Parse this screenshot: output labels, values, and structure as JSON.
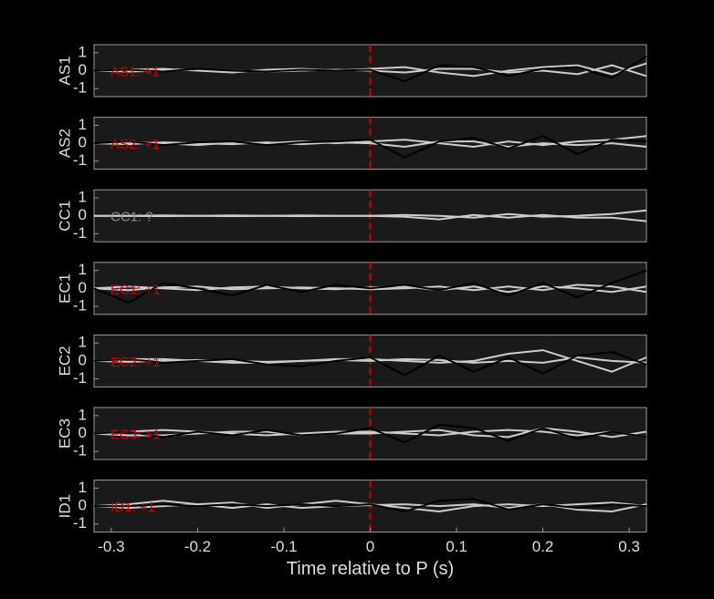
{
  "chart_data": [
    {
      "type": "line",
      "ylabel": "AS1",
      "annotation": {
        "text": "AS1: +1",
        "color": "#cc0000"
      },
      "vline": 0,
      "vline_color": "#cc0000",
      "xlim": [
        -0.32,
        0.32
      ],
      "ylim": [
        -1.45,
        1.45
      ],
      "yticks": [
        -1,
        0,
        1
      ],
      "x": [
        -0.32,
        -0.28,
        -0.24,
        -0.2,
        -0.16,
        -0.12,
        -0.08,
        -0.04,
        0,
        0.04,
        0.08,
        0.12,
        0.16,
        0.2,
        0.24,
        0.28,
        0.32
      ],
      "series": [
        {
          "color": "#cccccc",
          "values": [
            0,
            0.05,
            0.1,
            0,
            -0.1,
            0.05,
            0.1,
            0,
            0.1,
            0.2,
            -0.1,
            -0.3,
            0,
            0.2,
            0.3,
            -0.2,
            0.4
          ]
        },
        {
          "color": "#cccccc",
          "values": [
            0,
            -0.05,
            0,
            0.05,
            0,
            -0.05,
            0,
            0.05,
            0,
            -0.1,
            0.1,
            0.1,
            -0.1,
            0,
            -0.2,
            0.3,
            -0.3
          ]
        },
        {
          "color": "#000000",
          "values": [
            0,
            0.05,
            -0.05,
            0.1,
            0,
            -0.05,
            0.05,
            0,
            0.05,
            -0.6,
            0.3,
            0.2,
            -0.3,
            0.1,
            0.2,
            -0.4,
            0.8
          ]
        }
      ]
    },
    {
      "type": "line",
      "ylabel": "AS2",
      "annotation": {
        "text": "AS2: +1",
        "color": "#cc0000"
      },
      "vline": 0,
      "vline_color": "#cc0000",
      "xlim": [
        -0.32,
        0.32
      ],
      "ylim": [
        -1.45,
        1.45
      ],
      "yticks": [
        -1,
        0,
        1
      ],
      "x": [
        -0.32,
        -0.28,
        -0.24,
        -0.2,
        -0.16,
        -0.12,
        -0.08,
        -0.04,
        0,
        0.04,
        0.08,
        0.12,
        0.16,
        0.2,
        0.24,
        0.28,
        0.32
      ],
      "series": [
        {
          "color": "#cccccc",
          "values": [
            0,
            0.05,
            0,
            -0.1,
            0.05,
            0,
            0.1,
            0,
            0.1,
            0.2,
            0,
            -0.2,
            0.1,
            -0.1,
            0.1,
            0.2,
            0.4
          ]
        },
        {
          "color": "#cccccc",
          "values": [
            0,
            -0.05,
            0.05,
            0,
            -0.05,
            0.05,
            -0.05,
            0.05,
            0,
            -0.2,
            0.1,
            0.1,
            -0.2,
            0,
            -0.1,
            0,
            -0.2
          ]
        },
        {
          "color": "#000000",
          "values": [
            0,
            0.1,
            -0.1,
            0.05,
            0.1,
            -0.1,
            0.05,
            0.1,
            0.2,
            -0.8,
            0.1,
            0.3,
            -0.3,
            0.4,
            -0.6,
            0.2,
            0.1
          ]
        }
      ]
    },
    {
      "type": "line",
      "ylabel": "CC1",
      "annotation": {
        "text": "CC1: ?",
        "color": "#888888"
      },
      "vline": 0,
      "vline_color": "#cc0000",
      "xlim": [
        -0.32,
        0.32
      ],
      "ylim": [
        -1.45,
        1.45
      ],
      "yticks": [
        -1,
        0,
        1
      ],
      "x": [
        -0.32,
        -0.28,
        -0.24,
        -0.2,
        -0.16,
        -0.12,
        -0.08,
        -0.04,
        0,
        0.04,
        0.08,
        0.12,
        0.16,
        0.2,
        0.24,
        0.28,
        0.32
      ],
      "series": [
        {
          "color": "#cccccc",
          "values": [
            0,
            0,
            0.02,
            0,
            -0.02,
            0,
            0.02,
            0,
            0,
            0.05,
            0,
            -0.1,
            0.1,
            -0.05,
            0,
            0.1,
            0.3
          ]
        },
        {
          "color": "#cccccc",
          "values": [
            0,
            0,
            -0.02,
            0,
            0.02,
            0,
            -0.02,
            0,
            0,
            -0.05,
            -0.2,
            0.05,
            -0.1,
            0.05,
            -0.1,
            -0.1,
            -0.3
          ]
        }
      ]
    },
    {
      "type": "line",
      "ylabel": "EC1",
      "annotation": {
        "text": "EC1: +1",
        "color": "#cc0000"
      },
      "vline": 0,
      "vline_color": "#cc0000",
      "xlim": [
        -0.32,
        0.32
      ],
      "ylim": [
        -1.45,
        1.45
      ],
      "yticks": [
        -1,
        0,
        1
      ],
      "x": [
        -0.32,
        -0.28,
        -0.24,
        -0.2,
        -0.16,
        -0.12,
        -0.08,
        -0.04,
        0,
        0.04,
        0.08,
        0.12,
        0.16,
        0.2,
        0.24,
        0.28,
        0.32
      ],
      "series": [
        {
          "color": "#cccccc",
          "values": [
            0,
            0.1,
            0,
            -0.1,
            0.05,
            0.1,
            0,
            -0.05,
            0.05,
            0.1,
            -0.1,
            0.1,
            -0.2,
            0.1,
            0,
            -0.2,
            0.1
          ]
        },
        {
          "color": "#cccccc",
          "values": [
            0,
            -0.1,
            0.05,
            0.1,
            -0.05,
            0,
            0.05,
            0,
            -0.05,
            0,
            0.1,
            -0.1,
            0.1,
            -0.1,
            0.2,
            0.1,
            -0.2
          ]
        },
        {
          "color": "#000000",
          "values": [
            0,
            -0.8,
            0.3,
            0,
            -0.4,
            0.2,
            -0.2,
            0.2,
            0,
            0.2,
            -0.1,
            0.3,
            -0.4,
            0.3,
            -0.5,
            0.3,
            1.0
          ]
        }
      ]
    },
    {
      "type": "line",
      "ylabel": "EC2",
      "annotation": {
        "text": "EC2: +1",
        "color": "#cc0000"
      },
      "vline": 0,
      "vline_color": "#cc0000",
      "xlim": [
        -0.32,
        0.32
      ],
      "ylim": [
        -1.45,
        1.45
      ],
      "yticks": [
        -1,
        0,
        1
      ],
      "x": [
        -0.32,
        -0.28,
        -0.24,
        -0.2,
        -0.16,
        -0.12,
        -0.08,
        -0.04,
        0,
        0.04,
        0.08,
        0.12,
        0.16,
        0.2,
        0.24,
        0.28,
        0.32
      ],
      "series": [
        {
          "color": "#cccccc",
          "values": [
            0,
            0.1,
            0.1,
            0,
            -0.1,
            -0.1,
            0,
            0.1,
            0.1,
            0,
            -0.1,
            0,
            0.4,
            0.6,
            0,
            -0.6,
            0.2
          ]
        },
        {
          "color": "#cccccc",
          "values": [
            0,
            -0.05,
            0,
            0.05,
            0,
            -0.05,
            0,
            0.05,
            0,
            0.1,
            0.05,
            -0.1,
            0,
            -0.1,
            0.2,
            0,
            -0.1
          ]
        },
        {
          "color": "#000000",
          "values": [
            0,
            0.1,
            -0.1,
            0,
            0.1,
            -0.2,
            -0.3,
            0,
            0.2,
            -0.8,
            0.3,
            -0.6,
            0.2,
            -0.7,
            0.3,
            0.5,
            -0.2
          ]
        }
      ]
    },
    {
      "type": "line",
      "ylabel": "EC3",
      "annotation": {
        "text": "EC3: +1",
        "color": "#cc0000"
      },
      "vline": 0,
      "vline_color": "#cc0000",
      "xlim": [
        -0.32,
        0.32
      ],
      "ylim": [
        -1.45,
        1.45
      ],
      "yticks": [
        -1,
        0,
        1
      ],
      "x": [
        -0.32,
        -0.28,
        -0.24,
        -0.2,
        -0.16,
        -0.12,
        -0.08,
        -0.04,
        0,
        0.04,
        0.08,
        0.12,
        0.16,
        0.2,
        0.24,
        0.28,
        0.32
      ],
      "series": [
        {
          "color": "#cccccc",
          "values": [
            0,
            0.1,
            0.2,
            0.1,
            0,
            -0.1,
            0,
            0.1,
            0.1,
            0,
            -0.1,
            0.1,
            0.2,
            0.1,
            -0.1,
            0.1,
            -0.2
          ]
        },
        {
          "color": "#cccccc",
          "values": [
            0,
            -0.1,
            -0.1,
            0,
            0.1,
            0.1,
            -0.1,
            0,
            0,
            0.1,
            0.2,
            -0.1,
            -0.2,
            0.3,
            0.1,
            -0.2,
            0.1
          ]
        },
        {
          "color": "#000000",
          "values": [
            0,
            0.1,
            -0.2,
            0.1,
            -0.1,
            0.2,
            -0.1,
            0,
            0.3,
            -0.5,
            0.5,
            0.3,
            -0.4,
            0.3,
            -0.3,
            0.1,
            -0.2
          ]
        }
      ]
    },
    {
      "type": "line",
      "ylabel": "ID1",
      "annotation": {
        "text": "ID1: +1",
        "color": "#cc0000"
      },
      "vline": 0,
      "vline_color": "#cc0000",
      "xlim": [
        -0.32,
        0.32
      ],
      "ylim": [
        -1.45,
        1.45
      ],
      "yticks": [
        -1,
        0,
        1
      ],
      "xticks": [
        -0.3,
        -0.2,
        -0.1,
        0,
        0.1,
        0.2,
        0.3
      ],
      "xlabel": "Time relative to P (s)",
      "x": [
        -0.32,
        -0.28,
        -0.24,
        -0.2,
        -0.16,
        -0.12,
        -0.08,
        -0.04,
        0,
        0.04,
        0.08,
        0.12,
        0.16,
        0.2,
        0.24,
        0.28,
        0.32
      ],
      "series": [
        {
          "color": "#cccccc",
          "values": [
            0,
            0.1,
            0.3,
            0.1,
            0.2,
            -0.1,
            0.1,
            0.3,
            0.1,
            -0.1,
            -0.3,
            0,
            0.1,
            0,
            0.1,
            0.2,
            0
          ]
        },
        {
          "color": "#cccccc",
          "values": [
            0,
            -0.1,
            0,
            0.1,
            -0.1,
            0.1,
            -0.1,
            0,
            0.05,
            0.1,
            0,
            0.1,
            -0.1,
            0.1,
            -0.2,
            -0.3,
            0.1
          ]
        },
        {
          "color": "#000000",
          "values": [
            0,
            0,
            0.1,
            0,
            0.1,
            0,
            0.1,
            0,
            0.1,
            -0.3,
            0.3,
            0.4,
            -0.2,
            0.1,
            -0.1,
            0.1,
            0
          ]
        }
      ]
    }
  ]
}
